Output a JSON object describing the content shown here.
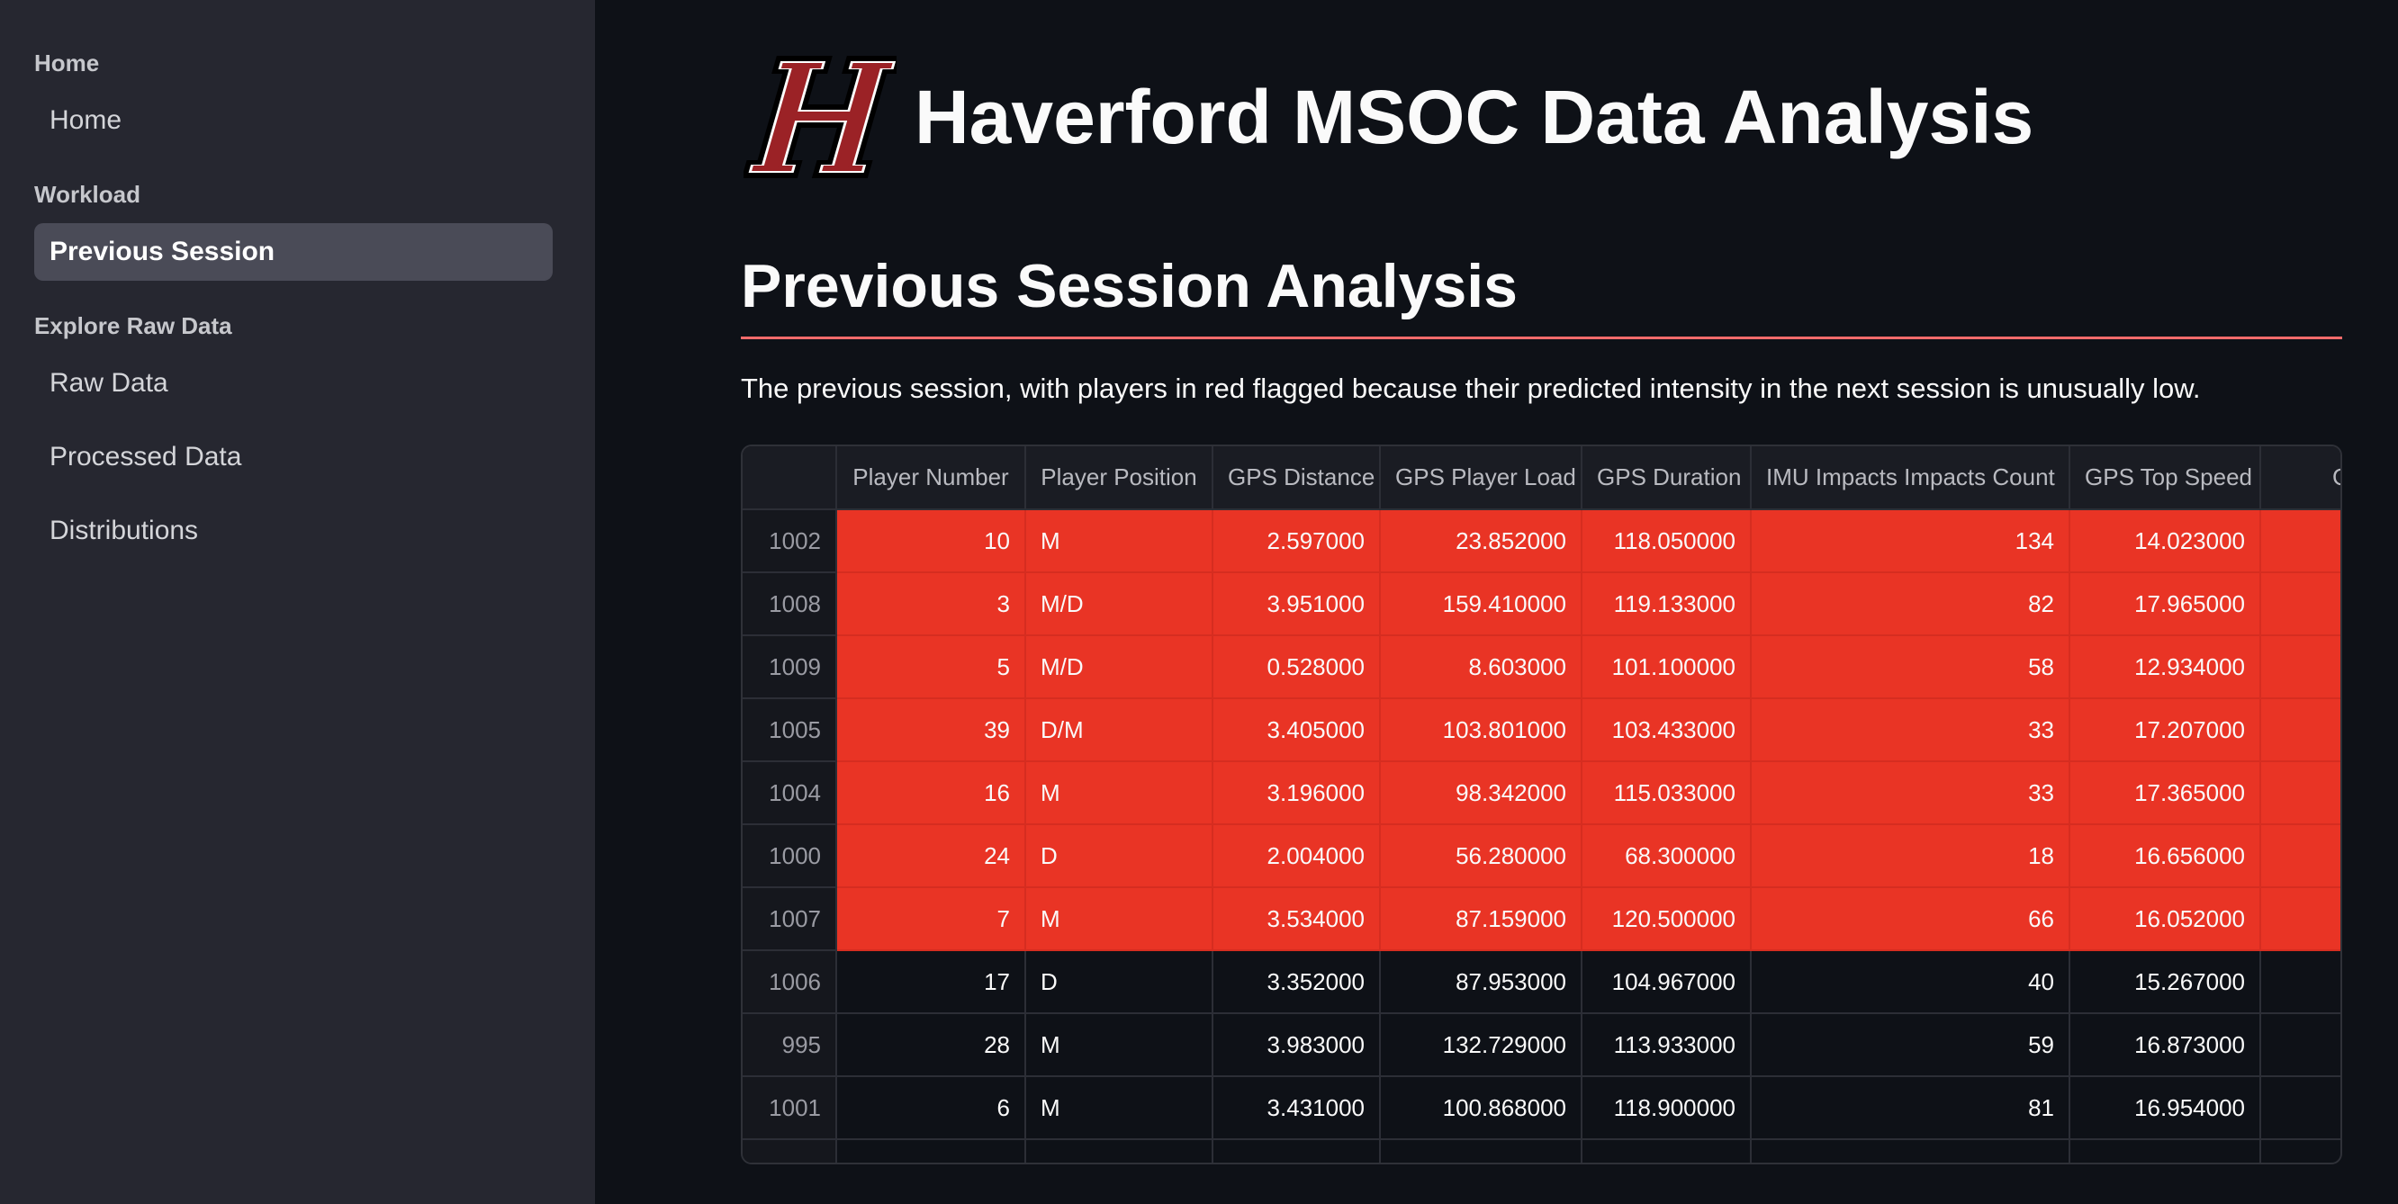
{
  "sidebar": {
    "sections": [
      {
        "title": "Home",
        "items": [
          {
            "label": "Home",
            "active": false
          }
        ]
      },
      {
        "title": "Workload",
        "items": [
          {
            "label": "Previous Session",
            "active": true
          }
        ]
      },
      {
        "title": "Explore Raw Data",
        "items": [
          {
            "label": "Raw Data",
            "active": false
          },
          {
            "label": "Processed Data",
            "active": false
          },
          {
            "label": "Distributions",
            "active": false
          }
        ]
      }
    ]
  },
  "header": {
    "title": "Haverford MSOC Data Analysis",
    "logo_letter": "H"
  },
  "page": {
    "title": "Previous Session Analysis",
    "caption": "The previous session, with players in red flagged because their predicted intensity in the next session is unusually low."
  },
  "table": {
    "columns": [
      "",
      "Player Number",
      "Player Position",
      "GPS Distance",
      "GPS Player Load",
      "GPS Duration",
      "IMU Impacts Impacts Count",
      "GPS Top Speed",
      "GPS Pe"
    ],
    "rows": [
      {
        "index": "1002",
        "flagged": true,
        "cells": [
          "10",
          "M",
          "2.597000",
          "23.852000",
          "118.050000",
          "134",
          "14.023000",
          ""
        ]
      },
      {
        "index": "1008",
        "flagged": true,
        "cells": [
          "3",
          "M/D",
          "3.951000",
          "159.410000",
          "119.133000",
          "82",
          "17.965000",
          ""
        ]
      },
      {
        "index": "1009",
        "flagged": true,
        "cells": [
          "5",
          "M/D",
          "0.528000",
          "8.603000",
          "101.100000",
          "58",
          "12.934000",
          ""
        ]
      },
      {
        "index": "1005",
        "flagged": true,
        "cells": [
          "39",
          "D/M",
          "3.405000",
          "103.801000",
          "103.433000",
          "33",
          "17.207000",
          ""
        ]
      },
      {
        "index": "1004",
        "flagged": true,
        "cells": [
          "16",
          "M",
          "3.196000",
          "98.342000",
          "115.033000",
          "33",
          "17.365000",
          ""
        ]
      },
      {
        "index": "1000",
        "flagged": true,
        "cells": [
          "24",
          "D",
          "2.004000",
          "56.280000",
          "68.300000",
          "18",
          "16.656000",
          ""
        ]
      },
      {
        "index": "1007",
        "flagged": true,
        "cells": [
          "7",
          "M",
          "3.534000",
          "87.159000",
          "120.500000",
          "66",
          "16.052000",
          ""
        ]
      },
      {
        "index": "1006",
        "flagged": false,
        "cells": [
          "17",
          "D",
          "3.352000",
          "87.953000",
          "104.967000",
          "40",
          "15.267000",
          ""
        ]
      },
      {
        "index": "995",
        "flagged": false,
        "cells": [
          "28",
          "M",
          "3.983000",
          "132.729000",
          "113.933000",
          "59",
          "16.873000",
          ""
        ]
      },
      {
        "index": "1001",
        "flagged": false,
        "cells": [
          "6",
          "M",
          "3.431000",
          "100.868000",
          "118.900000",
          "81",
          "16.954000",
          ""
        ]
      }
    ]
  },
  "colors": {
    "flag_red": "#e93425",
    "sidebar_bg": "#262730",
    "app_bg": "#0e1117",
    "accent_rule": "#ff6b6b",
    "logo_red": "#9b2226"
  }
}
